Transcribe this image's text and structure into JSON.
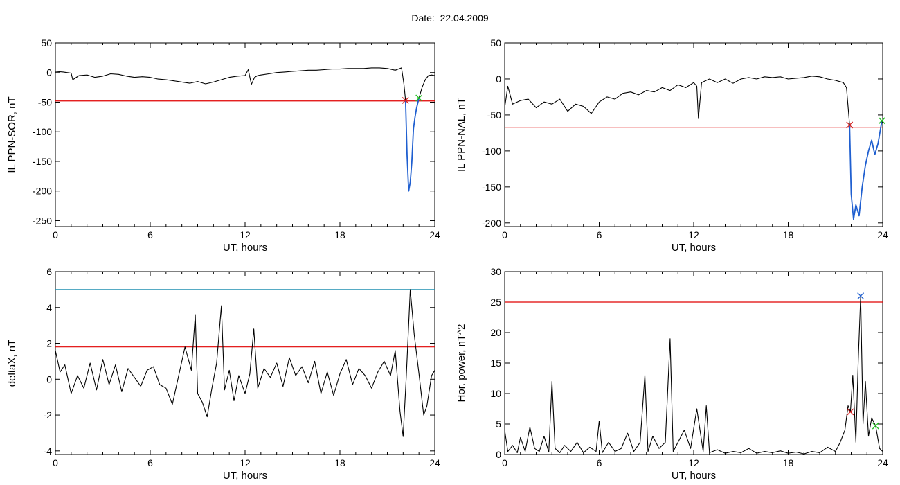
{
  "header": {
    "label": "Date:",
    "value": "22.04.2009"
  },
  "colors": {
    "signal": "#000000",
    "threshold": "#e00000",
    "event": "#1f5fd0",
    "upper": "#1f8fb0",
    "end_marker": "#20c020",
    "start_marker": "#d02020"
  },
  "chart_data": [
    {
      "id": "il_ppn_sor",
      "type": "line",
      "xlabel": "UT, hours",
      "ylabel": "IL PPN-SOR, nT",
      "xlim": [
        0,
        24
      ],
      "ylim": [
        -260,
        50
      ],
      "xticks": [
        0,
        6,
        12,
        18,
        24
      ],
      "yticks": [
        50,
        0,
        -50,
        -100,
        -150,
        -200,
        -250
      ],
      "grid": false,
      "thresholds": [
        {
          "y": -48,
          "color": "#e00000"
        }
      ],
      "markers": [
        {
          "x": 22.15,
          "y": -47,
          "symbol": "x",
          "color": "#d02020"
        },
        {
          "x": 23.0,
          "y": -43,
          "symbol": "x",
          "color": "#20c020"
        }
      ],
      "series": [
        {
          "style": "trace",
          "color": "#000000",
          "x": [
            0,
            0.5,
            1.0,
            1.1,
            1.5,
            2.0,
            2.5,
            3.0,
            3.5,
            4.0,
            4.5,
            5.0,
            5.5,
            6.0,
            6.5,
            7.0,
            7.5,
            8.0,
            8.5,
            9.0,
            9.5,
            10.0,
            10.5,
            11.0,
            11.5,
            12.0,
            12.2,
            12.4,
            12.6,
            12.8,
            13.0,
            13.5,
            14.0,
            14.5,
            15.0,
            15.5,
            16.0,
            16.5,
            17.0,
            17.5,
            18.0,
            18.5,
            19.0,
            19.5,
            20.0,
            20.5,
            21.0,
            21.5,
            21.9,
            22.05,
            22.15
          ],
          "y": [
            2,
            1,
            -1,
            -12,
            -5,
            -4,
            -8,
            -6,
            -2,
            -3,
            -6,
            -8,
            -7,
            -8,
            -11,
            -12,
            -14,
            -16,
            -18,
            -15,
            -19,
            -16,
            -12,
            -8,
            -6,
            -5,
            5,
            -20,
            -8,
            -5,
            -4,
            -2,
            0,
            1,
            2,
            3,
            4,
            4,
            5,
            6,
            6,
            7,
            7,
            7,
            8,
            8,
            7,
            4,
            8,
            -20,
            -47
          ]
        },
        {
          "style": "event",
          "color": "#1f5fd0",
          "x": [
            22.15,
            22.25,
            22.35,
            22.45,
            22.55,
            22.65,
            22.75,
            22.85,
            23.0
          ],
          "y": [
            -47,
            -140,
            -200,
            -185,
            -150,
            -95,
            -75,
            -60,
            -43
          ]
        },
        {
          "style": "trace",
          "color": "#000000",
          "x": [
            23.0,
            23.2,
            23.4,
            23.6,
            23.8,
            24.0
          ],
          "y": [
            -43,
            -25,
            -12,
            -5,
            -4,
            -5
          ]
        }
      ]
    },
    {
      "id": "il_ppn_nal",
      "type": "line",
      "xlabel": "UT, hours",
      "ylabel": "IL PPN-NAL, nT",
      "xlim": [
        0,
        24
      ],
      "ylim": [
        -205,
        50
      ],
      "xticks": [
        0,
        6,
        12,
        18,
        24
      ],
      "yticks": [
        50,
        0,
        -50,
        -100,
        -150,
        -200
      ],
      "grid": false,
      "thresholds": [
        {
          "y": -67,
          "color": "#e00000"
        }
      ],
      "markers": [
        {
          "x": 21.9,
          "y": -64,
          "symbol": "x",
          "color": "#d02020"
        },
        {
          "x": 23.95,
          "y": -58,
          "symbol": "x",
          "color": "#20c020"
        }
      ],
      "series": [
        {
          "style": "trace",
          "color": "#000000",
          "x": [
            0,
            0.2,
            0.5,
            1.0,
            1.5,
            2.0,
            2.5,
            3.0,
            3.5,
            4.0,
            4.5,
            5.0,
            5.5,
            6.0,
            6.5,
            7.0,
            7.5,
            8.0,
            8.5,
            9.0,
            9.5,
            10.0,
            10.5,
            11.0,
            11.5,
            12.0,
            12.2,
            12.3,
            12.5,
            12.8,
            13.0,
            13.5,
            14.0,
            14.5,
            15.0,
            15.5,
            16.0,
            16.5,
            17.0,
            17.5,
            18.0,
            18.5,
            19.0,
            19.5,
            20.0,
            20.5,
            21.0,
            21.5,
            21.7,
            21.9
          ],
          "y": [
            -40,
            -10,
            -35,
            -30,
            -28,
            -40,
            -32,
            -35,
            -28,
            -45,
            -35,
            -38,
            -48,
            -32,
            -25,
            -28,
            -20,
            -18,
            -22,
            -16,
            -18,
            -12,
            -16,
            -8,
            -12,
            -5,
            -10,
            -55,
            -5,
            -2,
            0,
            -5,
            0,
            -6,
            0,
            2,
            0,
            3,
            2,
            3,
            0,
            1,
            2,
            4,
            3,
            0,
            -2,
            -5,
            -12,
            -64
          ]
        },
        {
          "style": "event",
          "color": "#1f5fd0",
          "x": [
            21.9,
            22.0,
            22.15,
            22.3,
            22.5,
            22.7,
            22.9,
            23.1,
            23.3,
            23.5,
            23.7,
            23.95
          ],
          "y": [
            -64,
            -160,
            -195,
            -175,
            -190,
            -150,
            -120,
            -100,
            -85,
            -105,
            -90,
            -58
          ]
        },
        {
          "style": "trace",
          "color": "#000000",
          "x": [
            23.95,
            24.0
          ],
          "y": [
            -58,
            -62
          ]
        }
      ]
    },
    {
      "id": "deltax",
      "type": "line",
      "xlabel": "UT, hours",
      "ylabel": "deltaX, nT",
      "xlim": [
        0,
        24
      ],
      "ylim": [
        -4.2,
        6
      ],
      "xticks": [
        0,
        6,
        12,
        18,
        24
      ],
      "yticks": [
        6,
        4,
        2,
        0,
        -2,
        -4
      ],
      "grid": false,
      "thresholds": [
        {
          "y": 5.0,
          "color": "#1f8fb0"
        },
        {
          "y": 1.8,
          "color": "#e00000"
        }
      ],
      "markers": [],
      "series": [
        {
          "style": "trace",
          "color": "#000000",
          "x": [
            0,
            0.3,
            0.6,
            1.0,
            1.4,
            1.8,
            2.2,
            2.6,
            3.0,
            3.4,
            3.8,
            4.2,
            4.6,
            5.0,
            5.4,
            5.8,
            6.2,
            6.6,
            7.0,
            7.4,
            7.8,
            8.2,
            8.6,
            8.85,
            9.0,
            9.3,
            9.6,
            9.9,
            10.2,
            10.5,
            10.7,
            11.0,
            11.3,
            11.6,
            12.0,
            12.3,
            12.55,
            12.8,
            13.2,
            13.6,
            14.0,
            14.4,
            14.8,
            15.2,
            15.6,
            16.0,
            16.4,
            16.8,
            17.2,
            17.6,
            18.0,
            18.4,
            18.8,
            19.2,
            19.6,
            20.0,
            20.4,
            20.8,
            21.2,
            21.5,
            21.8,
            22.0,
            22.2,
            22.45,
            22.7,
            23.0,
            23.3,
            23.5,
            23.8,
            24.0
          ],
          "y": [
            1.6,
            0.4,
            0.8,
            -0.8,
            0.2,
            -0.5,
            0.9,
            -0.6,
            1.1,
            -0.3,
            0.8,
            -0.7,
            0.6,
            0.1,
            -0.4,
            0.5,
            0.7,
            -0.3,
            -0.5,
            -1.4,
            0.2,
            1.8,
            0.5,
            3.6,
            -0.8,
            -1.3,
            -2.1,
            -0.5,
            0.9,
            4.1,
            -0.6,
            0.5,
            -1.2,
            0.2,
            -0.8,
            0.3,
            2.8,
            -0.5,
            0.6,
            0.1,
            0.9,
            -0.4,
            1.2,
            0.2,
            0.7,
            -0.2,
            1.0,
            -0.8,
            0.4,
            -0.9,
            0.3,
            1.1,
            -0.3,
            0.6,
            0.2,
            -0.5,
            0.4,
            1.0,
            0.2,
            1.6,
            -1.8,
            -3.2,
            0.2,
            5.0,
            2.5,
            0.3,
            -2.0,
            -1.5,
            0.2,
            0.5
          ]
        }
      ]
    },
    {
      "id": "hor_power",
      "type": "line",
      "xlabel": "UT, hours",
      "ylabel": "Hor. power, nT^2",
      "xlim": [
        0,
        24
      ],
      "ylim": [
        0,
        30
      ],
      "xticks": [
        0,
        6,
        12,
        18,
        24
      ],
      "yticks": [
        30,
        25,
        20,
        15,
        10,
        5,
        0
      ],
      "grid": false,
      "thresholds": [
        {
          "y": 25.0,
          "color": "#e00000"
        }
      ],
      "markers": [
        {
          "x": 21.95,
          "y": 7.0,
          "symbol": "x",
          "color": "#d02020"
        },
        {
          "x": 22.6,
          "y": 26.0,
          "symbol": "x",
          "color": "#1f5fd0"
        },
        {
          "x": 23.55,
          "y": 4.7,
          "symbol": "x",
          "color": "#20c020"
        }
      ],
      "series": [
        {
          "style": "trace",
          "color": "#000000",
          "x": [
            0,
            0.2,
            0.5,
            0.8,
            1.0,
            1.3,
            1.6,
            1.9,
            2.2,
            2.5,
            2.8,
            3.0,
            3.2,
            3.5,
            3.8,
            4.2,
            4.6,
            5.0,
            5.4,
            5.8,
            6.0,
            6.2,
            6.6,
            7.0,
            7.4,
            7.8,
            8.2,
            8.6,
            8.9,
            9.1,
            9.4,
            9.8,
            10.2,
            10.5,
            10.7,
            11.0,
            11.4,
            11.8,
            12.2,
            12.6,
            12.8,
            13.0,
            13.5,
            14.0,
            14.5,
            15.0,
            15.5,
            16.0,
            16.5,
            17.0,
            17.5,
            18.0,
            18.5,
            19.0,
            19.5,
            20.0,
            20.5,
            21.0,
            21.3,
            21.6,
            21.8,
            21.95,
            22.1,
            22.3,
            22.45,
            22.6,
            22.75,
            22.9,
            23.1,
            23.3,
            23.55,
            23.8,
            24.0
          ],
          "y": [
            4,
            0.5,
            1.5,
            0.3,
            2.8,
            0.5,
            4.5,
            1.0,
            0.5,
            3.0,
            0.4,
            12.0,
            1.0,
            0.3,
            1.5,
            0.5,
            2.0,
            0.3,
            1.2,
            0.5,
            5.5,
            0.3,
            2.0,
            0.5,
            1.0,
            3.5,
            0.5,
            2.0,
            13.0,
            0.5,
            3.0,
            1.0,
            2.0,
            19.0,
            0.5,
            2.0,
            4.0,
            1.0,
            7.5,
            0.5,
            8.0,
            0.3,
            0.8,
            0.2,
            0.5,
            0.3,
            1.0,
            0.2,
            0.5,
            0.3,
            0.6,
            0.2,
            0.4,
            0.1,
            0.5,
            0.3,
            1.2,
            0.5,
            2.0,
            4.0,
            8.0,
            7.0,
            13.0,
            2.0,
            15.5,
            26.0,
            5.0,
            12.0,
            3.0,
            6.0,
            4.7,
            1.0,
            0.5
          ]
        }
      ]
    }
  ]
}
